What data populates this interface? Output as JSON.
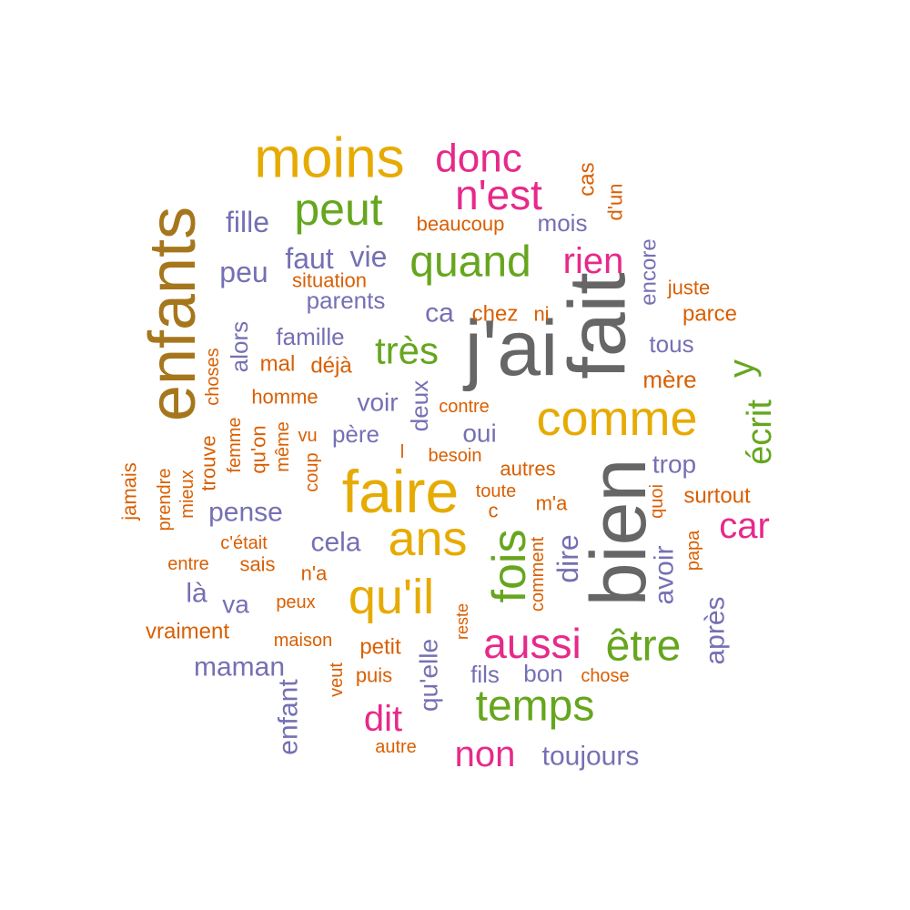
{
  "palette": {
    "grey": "#666666",
    "brown": "#a6761d",
    "gold": "#e6ab02",
    "green": "#66a61e",
    "magenta": "#e7298a",
    "purple": "#7570b3",
    "orange": "#d95f02"
  },
  "words": [
    {
      "text": "j'ai",
      "color": "grey"
    },
    {
      "text": "fait",
      "color": "grey"
    },
    {
      "text": "bien",
      "color": "grey"
    },
    {
      "text": "enfants",
      "color": "brown"
    },
    {
      "text": "moins",
      "color": "gold"
    },
    {
      "text": "faire",
      "color": "gold"
    },
    {
      "text": "comme",
      "color": "gold"
    },
    {
      "text": "ans",
      "color": "gold"
    },
    {
      "text": "qu'il",
      "color": "gold"
    },
    {
      "text": "peut",
      "color": "green"
    },
    {
      "text": "quand",
      "color": "green"
    },
    {
      "text": "très",
      "color": "green"
    },
    {
      "text": "fois",
      "color": "green"
    },
    {
      "text": "être",
      "color": "green"
    },
    {
      "text": "temps",
      "color": "green"
    },
    {
      "text": "y",
      "color": "green"
    },
    {
      "text": "écrit",
      "color": "green"
    },
    {
      "text": "donc",
      "color": "magenta"
    },
    {
      "text": "n'est",
      "color": "magenta"
    },
    {
      "text": "rien",
      "color": "magenta"
    },
    {
      "text": "car",
      "color": "magenta"
    },
    {
      "text": "aussi",
      "color": "magenta"
    },
    {
      "text": "dit",
      "color": "magenta"
    },
    {
      "text": "non",
      "color": "magenta"
    },
    {
      "text": "fille",
      "color": "purple"
    },
    {
      "text": "faut",
      "color": "purple"
    },
    {
      "text": "vie",
      "color": "purple"
    },
    {
      "text": "peu",
      "color": "purple"
    },
    {
      "text": "mois",
      "color": "purple"
    },
    {
      "text": "parents",
      "color": "purple"
    },
    {
      "text": "ca",
      "color": "purple"
    },
    {
      "text": "famille",
      "color": "purple"
    },
    {
      "text": "alors",
      "color": "purple"
    },
    {
      "text": "encore",
      "color": "purple"
    },
    {
      "text": "tous",
      "color": "purple"
    },
    {
      "text": "voir",
      "color": "purple"
    },
    {
      "text": "deux",
      "color": "purple"
    },
    {
      "text": "oui",
      "color": "purple"
    },
    {
      "text": "père",
      "color": "purple"
    },
    {
      "text": "trop",
      "color": "purple"
    },
    {
      "text": "pense",
      "color": "purple"
    },
    {
      "text": "cela",
      "color": "purple"
    },
    {
      "text": "dire",
      "color": "purple"
    },
    {
      "text": "avoir",
      "color": "purple"
    },
    {
      "text": "après",
      "color": "purple"
    },
    {
      "text": "là",
      "color": "purple"
    },
    {
      "text": "va",
      "color": "purple"
    },
    {
      "text": "maman",
      "color": "purple"
    },
    {
      "text": "qu'elle",
      "color": "purple"
    },
    {
      "text": "fils",
      "color": "purple"
    },
    {
      "text": "bon",
      "color": "purple"
    },
    {
      "text": "enfant",
      "color": "purple"
    },
    {
      "text": "toujours",
      "color": "purple"
    },
    {
      "text": "beaucoup",
      "color": "orange"
    },
    {
      "text": "cas",
      "color": "orange"
    },
    {
      "text": "d'un",
      "color": "orange"
    },
    {
      "text": "situation",
      "color": "orange"
    },
    {
      "text": "juste",
      "color": "orange"
    },
    {
      "text": "chez",
      "color": "orange"
    },
    {
      "text": "ni",
      "color": "orange"
    },
    {
      "text": "parce",
      "color": "orange"
    },
    {
      "text": "mal",
      "color": "orange"
    },
    {
      "text": "déjà",
      "color": "orange"
    },
    {
      "text": "mère",
      "color": "orange"
    },
    {
      "text": "choses",
      "color": "orange"
    },
    {
      "text": "homme",
      "color": "orange"
    },
    {
      "text": "contre",
      "color": "orange"
    },
    {
      "text": "femme",
      "color": "orange"
    },
    {
      "text": "qu'on",
      "color": "orange"
    },
    {
      "text": "même",
      "color": "orange"
    },
    {
      "text": "vu",
      "color": "orange"
    },
    {
      "text": "trouve",
      "color": "orange"
    },
    {
      "text": "coup",
      "color": "orange"
    },
    {
      "text": "l",
      "color": "orange"
    },
    {
      "text": "besoin",
      "color": "orange"
    },
    {
      "text": "autres",
      "color": "orange"
    },
    {
      "text": "jamais",
      "color": "orange"
    },
    {
      "text": "prendre",
      "color": "orange"
    },
    {
      "text": "mieux",
      "color": "orange"
    },
    {
      "text": "toute",
      "color": "orange"
    },
    {
      "text": "quoi",
      "color": "orange"
    },
    {
      "text": "surtout",
      "color": "orange"
    },
    {
      "text": "c",
      "color": "orange"
    },
    {
      "text": "m'a",
      "color": "orange"
    },
    {
      "text": "c'était",
      "color": "orange"
    },
    {
      "text": "comment",
      "color": "orange"
    },
    {
      "text": "papa",
      "color": "orange"
    },
    {
      "text": "entre",
      "color": "orange"
    },
    {
      "text": "sais",
      "color": "orange"
    },
    {
      "text": "n'a",
      "color": "orange"
    },
    {
      "text": "peux",
      "color": "orange"
    },
    {
      "text": "reste",
      "color": "orange"
    },
    {
      "text": "vraiment",
      "color": "orange"
    },
    {
      "text": "maison",
      "color": "orange"
    },
    {
      "text": "petit",
      "color": "orange"
    },
    {
      "text": "veut",
      "color": "orange"
    },
    {
      "text": "puis",
      "color": "orange"
    },
    {
      "text": "chose",
      "color": "orange"
    },
    {
      "text": "autre",
      "color": "orange"
    }
  ]
}
